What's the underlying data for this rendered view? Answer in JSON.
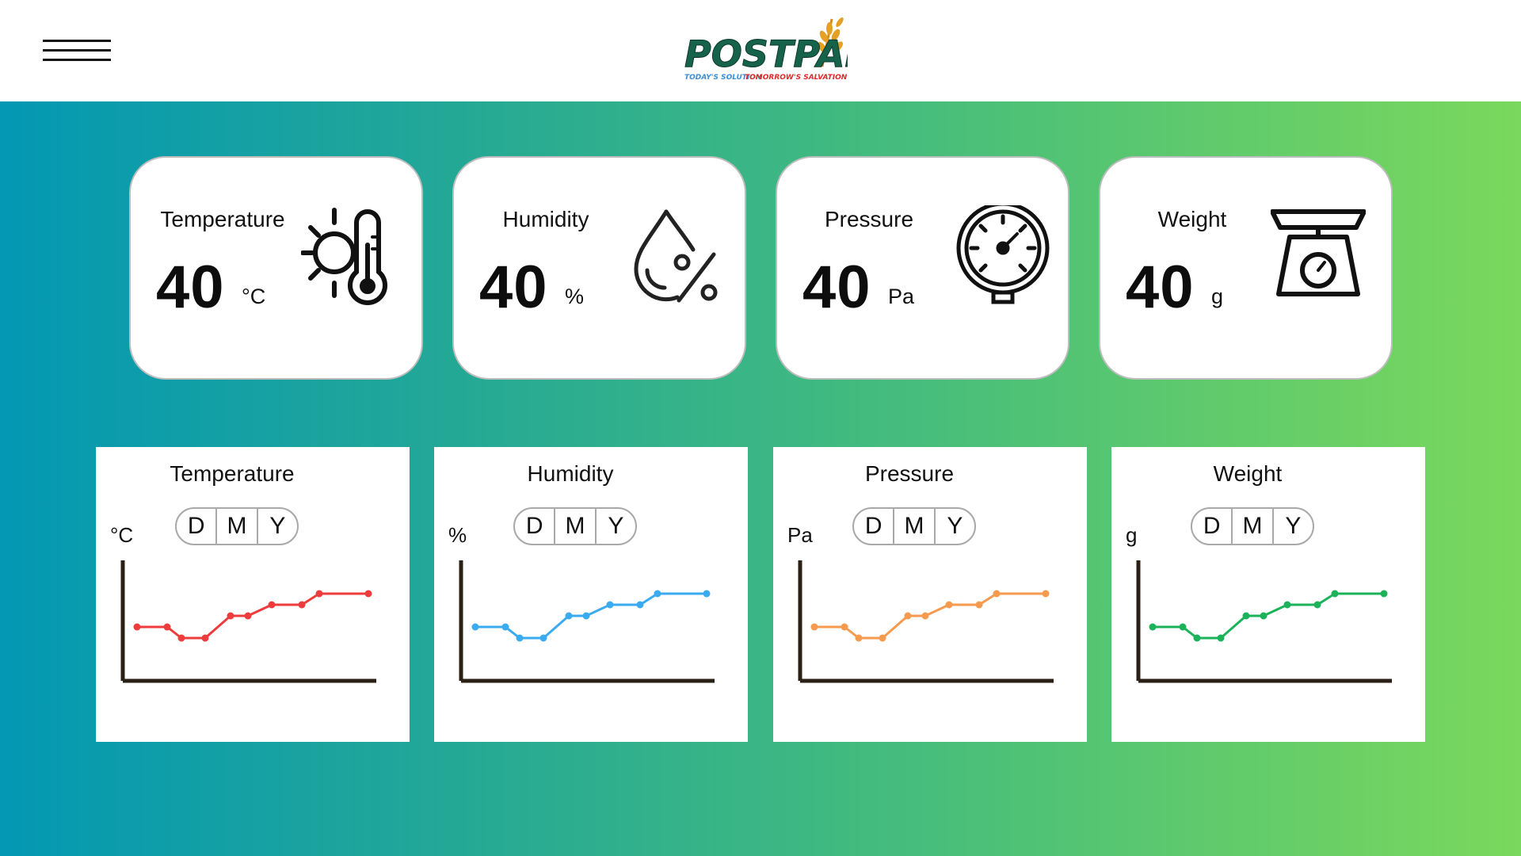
{
  "header": {
    "menu_icon": "hamburger-menu-icon",
    "logo": {
      "text": "POSTPAD",
      "tagline_part1": "TODAY'S SOLUTION",
      "tagline_part2": "TOMORROW'S SALVATION"
    }
  },
  "stats": [
    {
      "title": "Temperature",
      "value": "40",
      "unit": "°C",
      "icon": "thermometer-sun-icon"
    },
    {
      "title": "Humidity",
      "value": "40",
      "unit": "%",
      "icon": "humidity-drop-icon"
    },
    {
      "title": "Pressure",
      "value": "40",
      "unit": "Pa",
      "icon": "pressure-gauge-icon"
    },
    {
      "title": "Weight",
      "value": "40",
      "unit": "g",
      "icon": "weighing-scale-icon"
    }
  ],
  "charts": [
    {
      "title": "Temperature",
      "unit": "°C",
      "color": "#ee3b3b",
      "toggle": [
        "D",
        "M",
        "Y"
      ]
    },
    {
      "title": "Humidity",
      "unit": "%",
      "color": "#3aabef",
      "toggle": [
        "D",
        "M",
        "Y"
      ]
    },
    {
      "title": "Pressure",
      "unit": "Pa",
      "color": "#f59a4e",
      "toggle": [
        "D",
        "M",
        "Y"
      ]
    },
    {
      "title": "Weight",
      "unit": "g",
      "color": "#1bb25a",
      "toggle": [
        "D",
        "M",
        "Y"
      ]
    }
  ],
  "chart_data": [
    {
      "type": "line",
      "title": "Temperature",
      "ylabel": "°C",
      "series": [
        {
          "values": [
            4,
            4,
            3,
            3,
            5,
            5,
            6,
            6,
            7,
            7
          ]
        }
      ]
    },
    {
      "type": "line",
      "title": "Humidity",
      "ylabel": "%",
      "series": [
        {
          "values": [
            4,
            4,
            3,
            3,
            5,
            5,
            6,
            6,
            7,
            7
          ]
        }
      ]
    },
    {
      "type": "line",
      "title": "Pressure",
      "ylabel": "Pa",
      "series": [
        {
          "values": [
            4,
            4,
            3,
            3,
            5,
            5,
            6,
            6,
            7,
            7
          ]
        }
      ]
    },
    {
      "type": "line",
      "title": "Weight",
      "ylabel": "g",
      "series": [
        {
          "values": [
            4,
            4,
            3,
            3,
            5,
            5,
            6,
            6,
            7,
            7
          ]
        }
      ]
    }
  ]
}
